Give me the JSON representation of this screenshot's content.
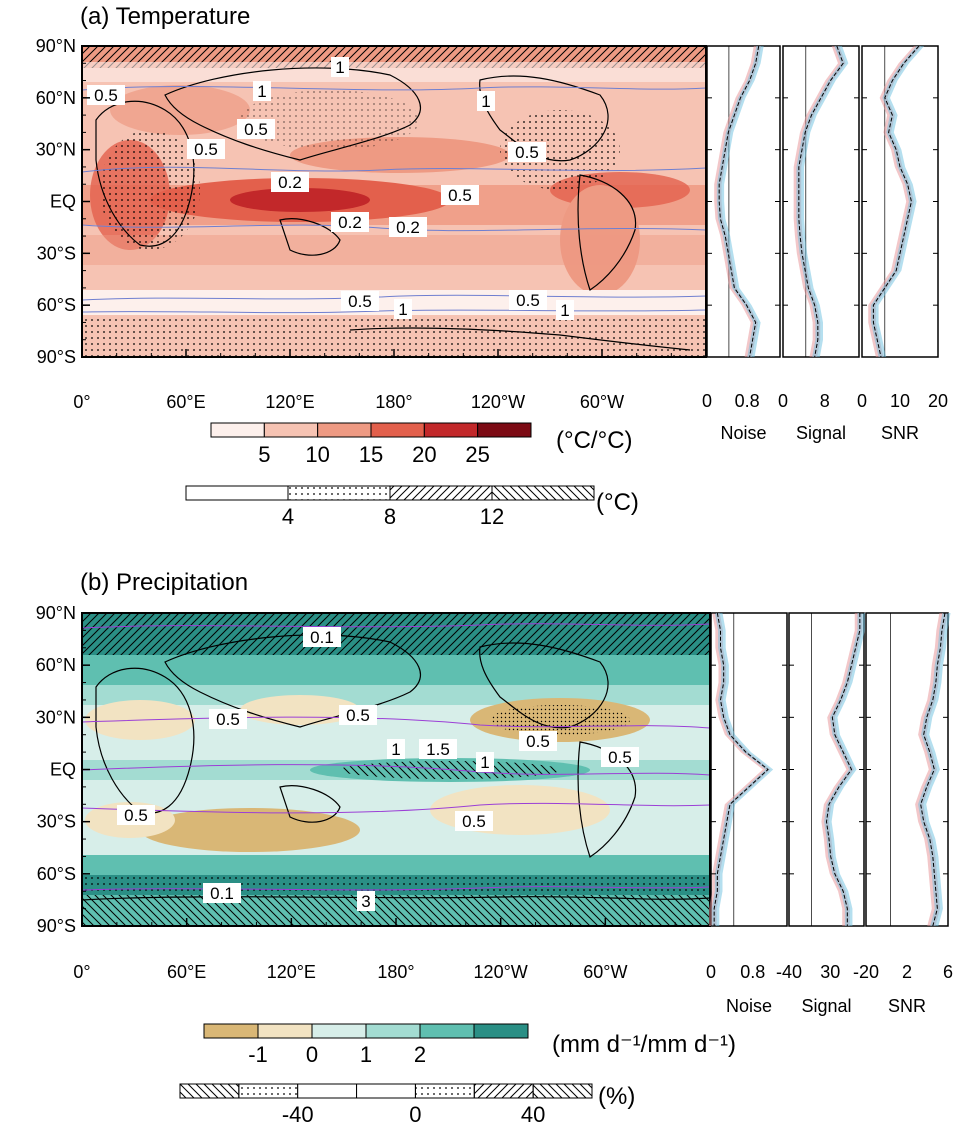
{
  "colors": {
    "temp_levels": [
      "#fdf0ec",
      "#f6c3b3",
      "#ee9a83",
      "#e3604c",
      "#c2282a",
      "#7c0b14"
    ],
    "precip_levels": [
      "#d9b776",
      "#f2e3c2",
      "#d7eee9",
      "#a3dcd2",
      "#5fbfb0",
      "#2a8f85"
    ],
    "noise_series": "#e58f93",
    "signal_series": "#6bc0e0",
    "contour": "#6f7fd0",
    "precip_contour": "#9b3fd6"
  },
  "panel_a": {
    "title": "(a) Temperature",
    "lat_labels": [
      "90°N",
      "60°N",
      "30°N",
      "EQ",
      "30°S",
      "60°S",
      "90°S"
    ],
    "lon_labels": [
      "0°",
      "60°E",
      "120°E",
      "180°",
      "120°W",
      "60°W"
    ],
    "contour_labels": [
      "1",
      "0.5",
      "0.5",
      "1",
      "0.5",
      "0.2",
      "0.2",
      "0.2",
      "0.5",
      "0.5",
      "1",
      "0.5",
      "1",
      "1",
      "0.5"
    ],
    "colorbar": {
      "ticks": [
        "5",
        "10",
        "15",
        "20",
        "25"
      ],
      "unit": "(°C/°C)"
    },
    "pattern_bar": {
      "ticks": [
        "4",
        "8",
        "12"
      ],
      "unit": "(°C)"
    },
    "profiles": [
      {
        "label": "Noise",
        "ticks": [
          "0",
          "0.8"
        ]
      },
      {
        "label": "Signal",
        "ticks": [
          "0",
          "8"
        ]
      },
      {
        "label": "SNR",
        "ticks": [
          "0",
          "10",
          "20"
        ]
      }
    ]
  },
  "panel_b": {
    "title": "(b) Precipitation",
    "lat_labels": [
      "90°N",
      "60°N",
      "30°N",
      "EQ",
      "30°S",
      "60°S",
      "90°S"
    ],
    "lon_labels": [
      "0°",
      "60°E",
      "120°E",
      "180°",
      "120°W",
      "60°W"
    ],
    "contour_labels": [
      "0.1",
      "0.5",
      "0.5",
      "1",
      "1.5",
      "1",
      "0.5",
      "0.5",
      "0.5",
      "0.5",
      "0.1",
      "3"
    ],
    "colorbar": {
      "ticks": [
        "-1",
        "0",
        "1",
        "2"
      ],
      "unit": "(mm d⁻¹/mm d⁻¹)"
    },
    "pattern_bar": {
      "ticks": [
        "-40",
        "0",
        "40"
      ],
      "unit": "(%)"
    },
    "profiles": [
      {
        "label": "Noise",
        "ticks": [
          "0",
          "0.8"
        ]
      },
      {
        "label": "Signal",
        "ticks": [
          "-40",
          "30"
        ]
      },
      {
        "label": "SNR",
        "ticks": [
          "-20",
          "2",
          "6"
        ]
      }
    ]
  },
  "chart_data": [
    {
      "type": "heatmap",
      "title": "(a) Temperature",
      "x": [
        "0°",
        "60°E",
        "120°E",
        "180°",
        "120°W",
        "60°W"
      ],
      "y": [
        "90°N",
        "60°N",
        "30°N",
        "EQ",
        "30°S",
        "60°S",
        "90°S"
      ],
      "colorbar_ticks": [
        5,
        10,
        15,
        20,
        25
      ],
      "colorbar_unit": "(°C/°C)",
      "stipple_ticks": [
        4,
        8,
        12
      ],
      "stipple_unit": "(°C)",
      "zonal_mean_profiles": {
        "lat": [
          90,
          80,
          70,
          60,
          50,
          40,
          30,
          20,
          10,
          0,
          -10,
          -20,
          -30,
          -40,
          -50,
          -60,
          -70,
          -80,
          -90
        ],
        "Noise": [
          0.85,
          0.8,
          0.7,
          0.55,
          0.45,
          0.35,
          0.3,
          0.25,
          0.2,
          0.2,
          0.22,
          0.3,
          0.35,
          0.4,
          0.45,
          0.65,
          0.8,
          0.75,
          0.7
        ],
        "Signal": [
          8.5,
          9.5,
          7.5,
          6.0,
          4.5,
          3.5,
          3.0,
          2.5,
          2.5,
          2.5,
          2.5,
          2.7,
          3.0,
          3.5,
          4.0,
          5.0,
          5.5,
          5.5,
          5.0
        ],
        "SNR": [
          15,
          11,
          8,
          6,
          8,
          7,
          9,
          10,
          12,
          13,
          12,
          11,
          10,
          9,
          6,
          3,
          3,
          4,
          5
        ],
        "ranges": {
          "Noise": [
            0,
            1.2
          ],
          "Signal": [
            0,
            12
          ],
          "SNR": [
            0,
            20
          ]
        }
      }
    },
    {
      "type": "heatmap",
      "title": "(b) Precipitation",
      "x": [
        "0°",
        "60°E",
        "120°E",
        "180°",
        "120°W",
        "60°W"
      ],
      "y": [
        "90°N",
        "60°N",
        "30°N",
        "EQ",
        "30°S",
        "60°S",
        "90°S"
      ],
      "colorbar_ticks": [
        -1,
        0,
        1,
        2
      ],
      "colorbar_unit": "(mm d⁻¹/mm d⁻¹)",
      "stipple_ticks": [
        -40,
        0,
        40
      ],
      "stipple_unit": "(%)",
      "zonal_mean_profiles": {
        "lat": [
          90,
          80,
          70,
          60,
          50,
          40,
          30,
          20,
          10,
          0,
          -10,
          -20,
          -30,
          -40,
          -50,
          -60,
          -70,
          -80,
          -90
        ],
        "Noise": [
          0.1,
          0.15,
          0.15,
          0.2,
          0.2,
          0.15,
          0.2,
          0.3,
          0.55,
          0.9,
          0.6,
          0.3,
          0.25,
          0.2,
          0.15,
          0.1,
          0.1,
          0.05,
          0.05
        ],
        "Signal": [
          45,
          45,
          40,
          35,
          30,
          22,
          12,
          15,
          25,
          35,
          20,
          8,
          5,
          8,
          10,
          15,
          25,
          30,
          30
        ],
        "SNR": [
          6,
          5,
          4.5,
          3.5,
          3,
          2,
          0,
          -1,
          1,
          2.5,
          0,
          -2,
          -1,
          1,
          2,
          2.5,
          3,
          3.5,
          2
        ],
        "ranges": {
          "Noise": [
            0,
            1.2
          ],
          "Signal": [
            -40,
            50
          ],
          "SNR": [
            -20,
            7
          ]
        }
      }
    }
  ]
}
